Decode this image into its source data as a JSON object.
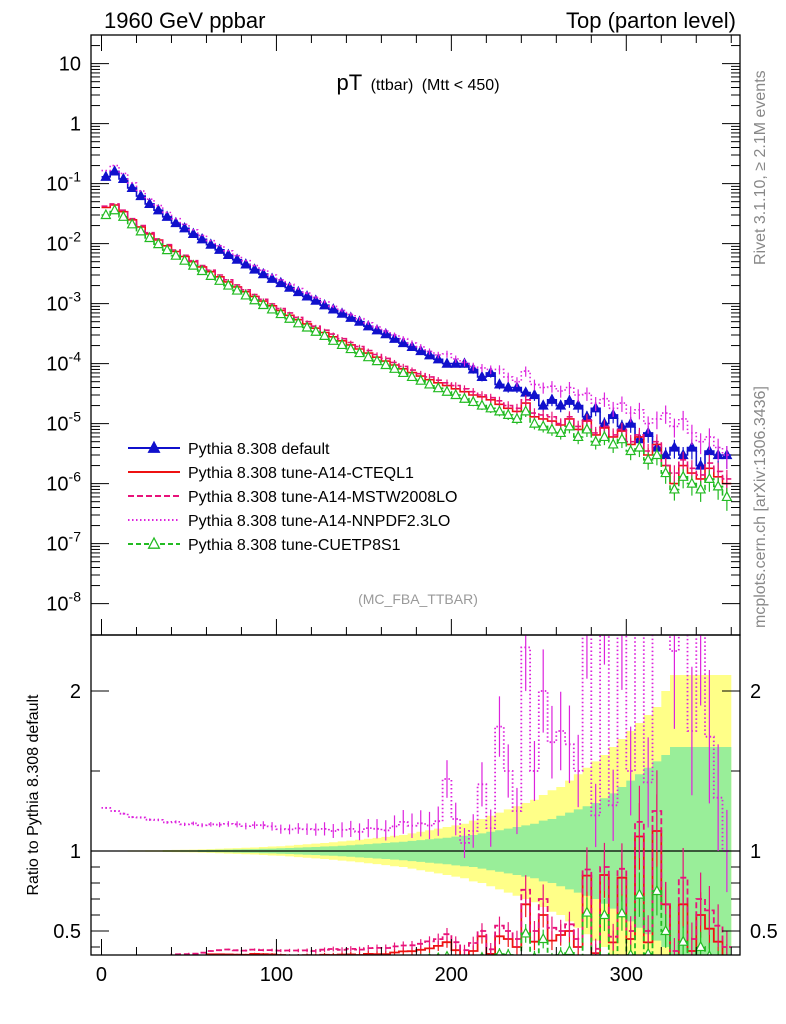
{
  "header": {
    "left": "1960 GeV ppbar",
    "right": "Top (parton level)"
  },
  "plot": {
    "title_main": "pT",
    "title_sub": "(ttbar)",
    "title_cut": "(Mtt < 450)",
    "watermark": "(MC_FBA_TTBAR)",
    "side_label_top": "Rivet 3.1.10, ≥ 2.1M events",
    "side_label_bottom": "mcplots.cern.ch [arXiv:1306.3436]",
    "ratio_ylabel": "Ratio to Pythia 8.308 default"
  },
  "chart_data": {
    "type": "line",
    "xlim": [
      -6,
      365
    ],
    "main_ylim": [
      3e-09,
      30
    ],
    "main_ylog": true,
    "main_yticks": [
      1e-08,
      1e-07,
      1e-06,
      1e-05,
      0.0001,
      0.001,
      0.01,
      0.1,
      1,
      10
    ],
    "main_ytick_labels": [
      {
        "base": "10",
        "exp": "-8"
      },
      {
        "base": "10",
        "exp": "-7"
      },
      {
        "base": "10",
        "exp": "-6"
      },
      {
        "base": "10",
        "exp": "-5"
      },
      {
        "base": "10",
        "exp": "-4"
      },
      {
        "base": "10",
        "exp": "-3"
      },
      {
        "base": "10",
        "exp": "-2"
      },
      {
        "base": "10",
        "exp": "-1"
      },
      {
        "base": "1",
        "exp": ""
      },
      {
        "base": "10",
        "exp": ""
      }
    ],
    "ratio_ylim": [
      0.35,
      2.35
    ],
    "ratio_yticks": [
      0.5,
      1,
      2
    ],
    "ratio_ytick_labels": [
      "0.5",
      "1",
      "2"
    ],
    "xticks": [
      0,
      100,
      200,
      300
    ],
    "xtick_labels": [
      "0",
      "100",
      "200",
      "300"
    ],
    "x": [
      2.5,
      7.5,
      12.5,
      17.5,
      22.5,
      27.5,
      32.5,
      37.5,
      42.5,
      47.5,
      52.5,
      57.5,
      62.5,
      67.5,
      72.5,
      77.5,
      82.5,
      87.5,
      92.5,
      97.5,
      102.5,
      107.5,
      112.5,
      117.5,
      122.5,
      127.5,
      132.5,
      137.5,
      142.5,
      147.5,
      152.5,
      157.5,
      162.5,
      167.5,
      172.5,
      177.5,
      182.5,
      187.5,
      192.5,
      197.5,
      202.5,
      207.5,
      212.5,
      217.5,
      222.5,
      227.5,
      232.5,
      237.5,
      242.5,
      247.5,
      252.5,
      257.5,
      262.5,
      267.5,
      272.5,
      277.5,
      282.5,
      287.5,
      292.5,
      297.5,
      302.5,
      307.5,
      312.5,
      317.5,
      322.5,
      327.5,
      332.5,
      337.5,
      342.5,
      347.5,
      352.5,
      357.5
    ],
    "series": [
      {
        "name": "Pythia 8.308 default",
        "color": "#1010cc",
        "dash": "",
        "marker": "triangle-filled",
        "values": [
          0.13,
          0.16,
          0.12,
          0.085,
          0.062,
          0.046,
          0.036,
          0.028,
          0.022,
          0.018,
          0.0145,
          0.0118,
          0.0096,
          0.0079,
          0.0065,
          0.0054,
          0.0045,
          0.0037,
          0.0031,
          0.0026,
          0.0022,
          0.00185,
          0.00156,
          0.00132,
          0.00112,
          0.00094,
          0.0008,
          0.00068,
          0.00058,
          0.0005,
          0.00042,
          0.00036,
          0.00031,
          0.00026,
          0.00022,
          0.00019,
          0.000162,
          0.000138,
          0.000118,
          0.0001,
          0.0001,
          0.0001,
          8e-05,
          6e-05,
          7e-05,
          4.5e-05,
          4e-05,
          4e-05,
          3.3e-05,
          3e-05,
          2e-05,
          2.5e-05,
          2e-05,
          2.4e-05,
          2e-05,
          1.3e-05,
          1.8e-05,
          1e-05,
          1.4e-05,
          9e-06,
          1e-05,
          5.5e-06,
          7e-06,
          4e-06,
          3e-06,
          4e-06,
          3e-06,
          4e-06,
          2e-06,
          3.5e-06,
          3e-06,
          3e-06
        ]
      },
      {
        "name": "Pythia 8.308 tune-A14-CTEQL1",
        "color": "#ee1111",
        "dash": "",
        "marker": "none",
        "values": [
          0.04,
          0.044,
          0.034,
          0.025,
          0.019,
          0.0145,
          0.0115,
          0.0092,
          0.0074,
          0.0061,
          0.005,
          0.0041,
          0.0034,
          0.0028,
          0.0023,
          0.0019,
          0.00158,
          0.00132,
          0.0011,
          0.00092,
          0.00077,
          0.00064,
          0.00054,
          0.00046,
          0.00039,
          0.00033,
          0.00028,
          0.00024,
          0.000205,
          0.000175,
          0.00015,
          0.000128,
          0.00011,
          9.5e-05,
          8.2e-05,
          7.1e-05,
          6.2e-05,
          5.4e-05,
          4.8e-05,
          4.3e-05,
          3.8e-05,
          3.4e-05,
          3e-05,
          2.8e-05,
          2.5e-05,
          2.1e-05,
          1.8e-05,
          1.6e-05,
          2.2e-05,
          1.3e-05,
          1.2e-05,
          1.1e-05,
          9.5e-06,
          1.2e-05,
          8e-06,
          1.1e-05,
          6.5e-06,
          8.5e-06,
          6e-06,
          7.5e-06,
          4.5e-06,
          6e-06,
          3e-06,
          4.5e-06,
          2e-06,
          1e-06,
          2e-06,
          1.5e-06,
          1.2e-06,
          1.8e-06,
          1.3e-06,
          1e-06
        ]
      },
      {
        "name": "Pythia 8.308 tune-A14-MSTW2008LO",
        "color": "#e8127a",
        "dash": "6,3",
        "marker": "none",
        "values": [
          0.042,
          0.046,
          0.036,
          0.026,
          0.02,
          0.0152,
          0.012,
          0.0096,
          0.0078,
          0.0064,
          0.0052,
          0.0043,
          0.0036,
          0.003,
          0.0025,
          0.00205,
          0.0017,
          0.00142,
          0.00118,
          0.00099,
          0.00083,
          0.0007,
          0.00059,
          0.0005,
          0.00042,
          0.00036,
          0.00031,
          0.00026,
          0.000225,
          0.000192,
          0.000165,
          0.000142,
          0.000122,
          0.000105,
          9e-05,
          7.8e-05,
          6.8e-05,
          6e-05,
          5.3e-05,
          4.8e-05,
          4.3e-05,
          3.8e-05,
          3.4e-05,
          3e-05,
          2.7e-05,
          2.4e-05,
          2e-05,
          1.8e-05,
          2.5e-05,
          1.5e-05,
          1.4e-05,
          1.3e-05,
          1e-05,
          1.3e-05,
          9e-06,
          1.15e-05,
          7e-06,
          9e-06,
          6.5e-06,
          8e-06,
          5e-06,
          6.5e-06,
          3.5e-06,
          5e-06,
          2e-06,
          1.5e-06,
          2.5e-06,
          1.8e-06,
          1.4e-06,
          2.2e-06,
          1.6e-06,
          1.2e-06
        ]
      },
      {
        "name": "Pythia 8.308 tune-A14-NNPDF2.3LO",
        "color": "#dd22dd",
        "dash": "1.5,2.5",
        "marker": "none",
        "values": [
          0.165,
          0.2,
          0.148,
          0.103,
          0.075,
          0.055,
          0.043,
          0.033,
          0.026,
          0.021,
          0.017,
          0.0137,
          0.0112,
          0.0092,
          0.0076,
          0.0063,
          0.0052,
          0.0043,
          0.0036,
          0.003,
          0.0025,
          0.0021,
          0.00178,
          0.0015,
          0.00127,
          0.00107,
          0.0009,
          0.00077,
          0.00066,
          0.00056,
          0.00048,
          0.00041,
          0.00035,
          0.0003,
          0.00026,
          0.00022,
          0.00019,
          0.00016,
          0.00014,
          0.000145,
          0.00012,
          0.000105,
          9e-05,
          8.5e-05,
          8e-05,
          8e-05,
          6e-05,
          5e-05,
          7.5e-05,
          4.5e-05,
          4e-05,
          4.2e-05,
          3.5e-05,
          4e-05,
          3e-05,
          3.2e-05,
          2.2e-05,
          2.6e-05,
          1.8e-05,
          2.2e-05,
          1.5e-05,
          1.7e-05,
          1e-05,
          1.2e-05,
          1.5e-05,
          9e-06,
          1.2e-05,
          7e-06,
          5e-06,
          6e-06,
          4e-06,
          3e-06
        ]
      },
      {
        "name": "Pythia 8.308 tune-CUETP8S1",
        "color": "#22bb22",
        "dash": "5,3",
        "marker": "triangle-open",
        "values": [
          0.03,
          0.036,
          0.028,
          0.021,
          0.016,
          0.0124,
          0.0098,
          0.0078,
          0.0063,
          0.0052,
          0.0043,
          0.0035,
          0.0029,
          0.0024,
          0.002,
          0.00165,
          0.00137,
          0.00114,
          0.00095,
          0.0008,
          0.00067,
          0.00056,
          0.00047,
          0.0004,
          0.00034,
          0.00029,
          0.00024,
          0.000205,
          0.000175,
          0.00015,
          0.000128,
          0.00011,
          9.5e-05,
          8.2e-05,
          7e-05,
          6e-05,
          5.2e-05,
          4.5e-05,
          3.9e-05,
          3.4e-05,
          3e-05,
          2.6e-05,
          2.3e-05,
          2e-05,
          1.8e-05,
          1.6e-05,
          1.4e-05,
          1.2e-05,
          1.6e-05,
          1e-05,
          9e-06,
          8e-06,
          7e-06,
          9e-06,
          6e-06,
          8e-06,
          5e-06,
          6e-06,
          4.5e-06,
          5.5e-06,
          3.5e-06,
          4e-06,
          2.5e-06,
          3e-06,
          1.5e-06,
          8e-07,
          1.3e-06,
          1e-06,
          8e-07,
          1.2e-06,
          9e-07,
          6e-07
        ]
      }
    ],
    "ratio_band_yellow": [
      0.003,
      0.003,
      0.003,
      0.004,
      0.004,
      0.005,
      0.005,
      0.006,
      0.007,
      0.008,
      0.009,
      0.01,
      0.012,
      0.014,
      0.016,
      0.018,
      0.02,
      0.022,
      0.025,
      0.028,
      0.03,
      0.034,
      0.038,
      0.042,
      0.046,
      0.05,
      0.055,
      0.06,
      0.065,
      0.07,
      0.076,
      0.082,
      0.088,
      0.095,
      0.1,
      0.11,
      0.12,
      0.13,
      0.14,
      0.15,
      0.16,
      0.17,
      0.19,
      0.2,
      0.22,
      0.24,
      0.26,
      0.28,
      0.3,
      0.32,
      0.35,
      0.38,
      0.4,
      0.44,
      0.48,
      0.52,
      0.56,
      0.6,
      0.65,
      0.7,
      0.75,
      0.8,
      0.85,
      0.9,
      1.0,
      1.1,
      1.1,
      1.1,
      1.1,
      1.1,
      1.1,
      1.1
    ],
    "ratio_band_green": [
      0.002,
      0.002,
      0.002,
      0.002,
      0.003,
      0.003,
      0.003,
      0.004,
      0.004,
      0.005,
      0.005,
      0.006,
      0.007,
      0.008,
      0.009,
      0.01,
      0.011,
      0.012,
      0.014,
      0.015,
      0.017,
      0.019,
      0.021,
      0.023,
      0.025,
      0.028,
      0.03,
      0.033,
      0.036,
      0.04,
      0.043,
      0.047,
      0.05,
      0.054,
      0.058,
      0.063,
      0.068,
      0.073,
      0.078,
      0.083,
      0.09,
      0.095,
      0.1,
      0.11,
      0.12,
      0.13,
      0.14,
      0.15,
      0.16,
      0.17,
      0.19,
      0.2,
      0.22,
      0.24,
      0.26,
      0.28,
      0.3,
      0.33,
      0.36,
      0.4,
      0.44,
      0.48,
      0.52,
      0.56,
      0.6,
      0.65,
      0.65,
      0.65,
      0.65,
      0.65,
      0.65,
      0.65
    ]
  }
}
